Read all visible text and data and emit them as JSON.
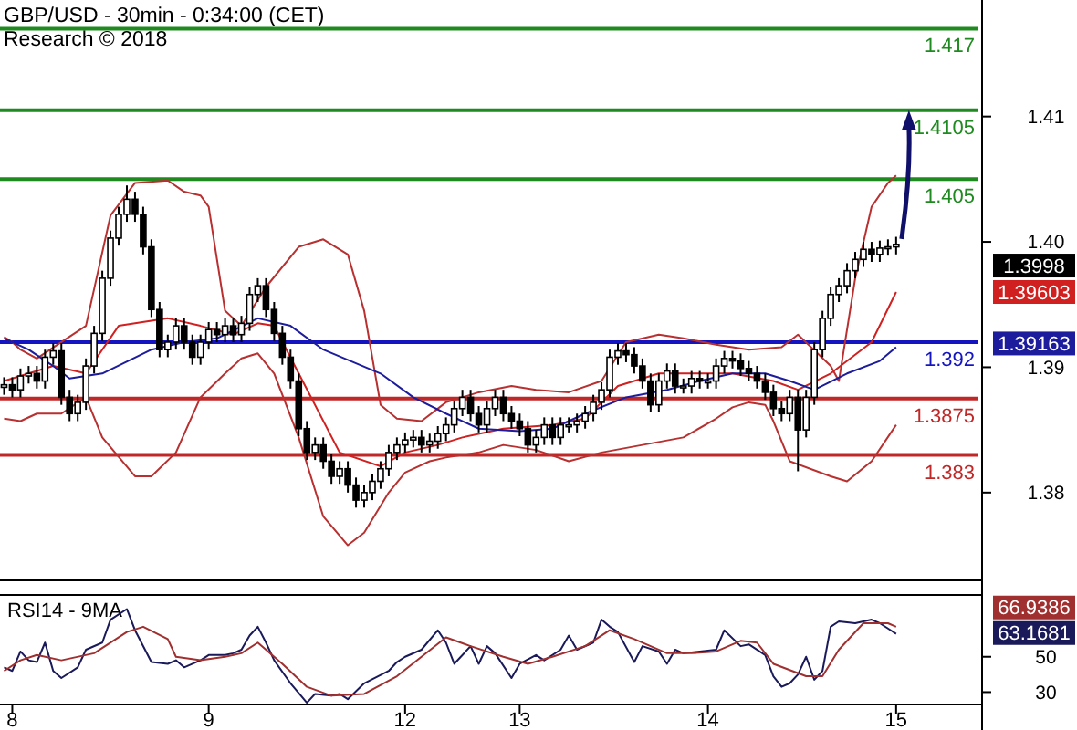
{
  "chart_data": [
    {
      "type": "candlestick",
      "title": "GBP/USD - 30min - 0:34:00 (CET)",
      "subtitle": "Research © 2018",
      "color": "#000000",
      "categories": [
        null,
        "8",
        null,
        null,
        null,
        null,
        null,
        null,
        null,
        null,
        null,
        null,
        null,
        null,
        null,
        null,
        null,
        null,
        null,
        null,
        null,
        null,
        null,
        null,
        null,
        "9",
        null,
        null,
        null,
        null,
        null,
        null,
        null,
        null,
        null,
        null,
        null,
        null,
        null,
        null,
        null,
        null,
        null,
        null,
        null,
        null,
        null,
        null,
        null,
        "12",
        null,
        null,
        null,
        null,
        null,
        null,
        null,
        null,
        null,
        null,
        null,
        null,
        null,
        "13",
        null,
        null,
        null,
        null,
        null,
        null,
        null,
        null,
        null,
        null,
        null,
        null,
        null,
        null,
        null,
        null,
        null,
        null,
        null,
        null,
        null,
        null,
        "14",
        null,
        null,
        null,
        null,
        null,
        null,
        null,
        null,
        null,
        null,
        null,
        null,
        null,
        null,
        null,
        null,
        null,
        null,
        null,
        null,
        null,
        null,
        "15",
        null,
        null,
        null,
        null,
        null,
        null,
        null,
        null,
        null,
        null
      ],
      "ohlc": [
        [
          1.3884,
          1.3892,
          1.3878,
          1.3886
        ],
        [
          1.3886,
          1.3892,
          1.3876,
          1.3882
        ],
        [
          1.3882,
          1.3899,
          1.3876,
          1.3893
        ],
        [
          1.3893,
          1.3901,
          1.3887,
          1.3895
        ],
        [
          1.3895,
          1.3901,
          1.3883,
          1.3889
        ],
        [
          1.3889,
          1.3914,
          1.3883,
          1.3908
        ],
        [
          1.3908,
          1.3919,
          1.3902,
          1.3913
        ],
        [
          1.3913,
          1.3919,
          1.387,
          1.3876
        ],
        [
          1.3876,
          1.3882,
          1.3857,
          1.3863
        ],
        [
          1.3863,
          1.3878,
          1.3857,
          1.3872
        ],
        [
          1.3872,
          1.3907,
          1.3866,
          1.3901
        ],
        [
          1.3901,
          1.3933,
          1.3895,
          1.3927
        ],
        [
          1.3927,
          1.3977,
          1.3921,
          1.3971
        ],
        [
          1.3971,
          1.4009,
          1.3965,
          1.4003
        ],
        [
          1.4003,
          1.4028,
          1.3997,
          1.4022
        ],
        [
          1.4022,
          1.4045,
          1.4016,
          1.4034
        ],
        [
          1.4034,
          1.404,
          1.4016,
          1.4022
        ],
        [
          1.4022,
          1.4028,
          1.399,
          1.3996
        ],
        [
          1.3996,
          1.4002,
          1.394,
          1.3946
        ],
        [
          1.3946,
          1.3952,
          1.3908,
          1.3914
        ],
        [
          1.3914,
          1.3926,
          1.3908,
          1.392
        ],
        [
          1.392,
          1.3939,
          1.3914,
          1.3933
        ],
        [
          1.3933,
          1.3939,
          1.3914,
          1.392
        ],
        [
          1.392,
          1.3926,
          1.3902,
          1.3908
        ],
        [
          1.3908,
          1.3926,
          1.3902,
          1.392
        ],
        [
          1.392,
          1.3936,
          1.3914,
          1.393
        ],
        [
          1.393,
          1.3936,
          1.392,
          1.3926
        ],
        [
          1.3926,
          1.3939,
          1.392,
          1.3933
        ],
        [
          1.3933,
          1.3939,
          1.392,
          1.3926
        ],
        [
          1.3926,
          1.3941,
          1.392,
          1.3935
        ],
        [
          1.3935,
          1.3964,
          1.3929,
          1.3958
        ],
        [
          1.3958,
          1.3971,
          1.3952,
          1.3965
        ],
        [
          1.3965,
          1.3971,
          1.394,
          1.3946
        ],
        [
          1.3946,
          1.3952,
          1.3921,
          1.3927
        ],
        [
          1.3927,
          1.3933,
          1.3902,
          1.3908
        ],
        [
          1.3908,
          1.3914,
          1.3883,
          1.3889
        ],
        [
          1.3889,
          1.3895,
          1.3845,
          1.3851
        ],
        [
          1.3851,
          1.3857,
          1.3826,
          1.3832
        ],
        [
          1.3832,
          1.3844,
          1.3826,
          1.3838
        ],
        [
          1.3838,
          1.3844,
          1.3819,
          1.3825
        ],
        [
          1.3825,
          1.3831,
          1.3807,
          1.3813
        ],
        [
          1.3813,
          1.3825,
          1.3807,
          1.3819
        ],
        [
          1.3819,
          1.3825,
          1.38,
          1.3806
        ],
        [
          1.3806,
          1.3812,
          1.3788,
          1.3794
        ],
        [
          1.3794,
          1.3806,
          1.3788,
          1.38
        ],
        [
          1.38,
          1.3815,
          1.3794,
          1.3809
        ],
        [
          1.3809,
          1.3825,
          1.3803,
          1.3819
        ],
        [
          1.3819,
          1.3838,
          1.3813,
          1.3832
        ],
        [
          1.3832,
          1.3844,
          1.3826,
          1.3838
        ],
        [
          1.3838,
          1.3848,
          1.3832,
          1.3842
        ],
        [
          1.3842,
          1.385,
          1.3836,
          1.3844
        ],
        [
          1.3844,
          1.385,
          1.3832,
          1.3838
        ],
        [
          1.3838,
          1.3847,
          1.3832,
          1.3841
        ],
        [
          1.3841,
          1.3853,
          1.3835,
          1.3847
        ],
        [
          1.3847,
          1.386,
          1.3841,
          1.3854
        ],
        [
          1.3854,
          1.3873,
          1.3848,
          1.3867
        ],
        [
          1.3867,
          1.3882,
          1.3861,
          1.3876
        ],
        [
          1.3876,
          1.3882,
          1.3857,
          1.3863
        ],
        [
          1.3863,
          1.3869,
          1.3848,
          1.3854
        ],
        [
          1.3854,
          1.3873,
          1.3848,
          1.3867
        ],
        [
          1.3867,
          1.3882,
          1.3861,
          1.3876
        ],
        [
          1.3876,
          1.3882,
          1.3857,
          1.3863
        ],
        [
          1.3863,
          1.3869,
          1.3851,
          1.3857
        ],
        [
          1.3857,
          1.3863,
          1.3845,
          1.3851
        ],
        [
          1.3851,
          1.3857,
          1.3832,
          1.3838
        ],
        [
          1.3838,
          1.385,
          1.3832,
          1.3844
        ],
        [
          1.3844,
          1.386,
          1.3838,
          1.3854
        ],
        [
          1.3854,
          1.386,
          1.3838,
          1.3844
        ],
        [
          1.3844,
          1.386,
          1.3838,
          1.3854
        ],
        [
          1.3854,
          1.386,
          1.3848,
          1.3854
        ],
        [
          1.3854,
          1.3863,
          1.3848,
          1.3857
        ],
        [
          1.3857,
          1.3869,
          1.3851,
          1.3863
        ],
        [
          1.3863,
          1.3878,
          1.3857,
          1.3872
        ],
        [
          1.3872,
          1.3888,
          1.3866,
          1.3882
        ],
        [
          1.3882,
          1.3914,
          1.3876,
          1.3908
        ],
        [
          1.3908,
          1.3919,
          1.3902,
          1.3913
        ],
        [
          1.3913,
          1.3919,
          1.3904,
          1.391
        ],
        [
          1.391,
          1.3916,
          1.3895,
          1.3901
        ],
        [
          1.3901,
          1.3907,
          1.3883,
          1.3889
        ],
        [
          1.3889,
          1.3895,
          1.3864,
          1.387
        ],
        [
          1.387,
          1.3895,
          1.3864,
          1.3889
        ],
        [
          1.3889,
          1.3903,
          1.3883,
          1.3897
        ],
        [
          1.3897,
          1.3903,
          1.3879,
          1.3885
        ],
        [
          1.3885,
          1.3891,
          1.3879,
          1.3885
        ],
        [
          1.3885,
          1.3897,
          1.3879,
          1.3891
        ],
        [
          1.3891,
          1.3897,
          1.3883,
          1.3889
        ],
        [
          1.3889,
          1.3895,
          1.3883,
          1.3889
        ],
        [
          1.3889,
          1.3907,
          1.3883,
          1.3901
        ],
        [
          1.3901,
          1.3913,
          1.3895,
          1.3907
        ],
        [
          1.3907,
          1.3913,
          1.3899,
          1.3905
        ],
        [
          1.3905,
          1.3911,
          1.3893,
          1.3899
        ],
        [
          1.3899,
          1.3905,
          1.3889,
          1.3895
        ],
        [
          1.3895,
          1.3901,
          1.3883,
          1.3889
        ],
        [
          1.3889,
          1.3895,
          1.3874,
          1.388
        ],
        [
          1.388,
          1.3886,
          1.3861,
          1.3867
        ],
        [
          1.3867,
          1.3873,
          1.3857,
          1.3863
        ],
        [
          1.3863,
          1.3882,
          1.3857,
          1.3876
        ],
        [
          1.3876,
          1.3882,
          1.3817,
          1.385
        ],
        [
          1.385,
          1.3882,
          1.3844,
          1.3876
        ],
        [
          1.3876,
          1.392,
          1.387,
          1.3914
        ],
        [
          1.3914,
          1.3945,
          1.3908,
          1.3939
        ],
        [
          1.3939,
          1.3964,
          1.3933,
          1.3958
        ],
        [
          1.3958,
          1.3971,
          1.3952,
          1.3965
        ],
        [
          1.3965,
          1.3983,
          1.3959,
          1.3977
        ],
        [
          1.3977,
          1.3992,
          1.3971,
          1.3986
        ],
        [
          1.3986,
          1.4,
          1.398,
          1.3994
        ],
        [
          1.3994,
          1.4,
          1.3984,
          1.399
        ],
        [
          1.399,
          1.4001,
          1.3984,
          1.3995
        ],
        [
          1.3995,
          1.4002,
          1.3989,
          1.3996
        ],
        [
          1.3996,
          1.4004,
          1.399,
          1.3998
        ],
        null,
        null,
        null,
        null,
        null,
        null,
        null,
        null,
        null,
        null
      ],
      "series": [
        {
          "type": "line",
          "color": "#b83030",
          "values": [
            1.3924,
            1.392,
            1.3914,
            null,
            1.3907,
            null,
            null,
            1.392,
            null,
            null,
            1.3933,
            null,
            null,
            1.4021,
            null,
            null,
            1.4047,
            null,
            null,
            null,
            1.4049,
            null,
            1.404,
            null,
            1.4037,
            1.4028,
            null,
            1.3945,
            null,
            1.3933,
            null,
            null,
            1.3964,
            null,
            null,
            null,
            1.3996,
            null,
            null,
            1.4002,
            null,
            null,
            1.399,
            null,
            1.3945,
            null,
            1.387,
            null,
            1.3859,
            null,
            null,
            1.3857,
            null,
            null,
            1.3872,
            null,
            null,
            null,
            1.388,
            null,
            null,
            null,
            1.3885,
            null,
            null,
            1.3882,
            null,
            null,
            null,
            1.388,
            null,
            null,
            null,
            1.3889,
            null,
            null,
            1.392,
            null,
            null,
            null,
            1.3926,
            null,
            null,
            1.3923,
            null,
            null,
            null,
            1.3918,
            null,
            null,
            null,
            1.3914,
            null,
            null,
            null,
            1.3916,
            null,
            1.3926,
            null,
            null,
            null,
            1.3901,
            1.3889,
            null,
            1.3971,
            null,
            1.4028,
            null,
            1.4047,
            1.4053,
            null,
            null,
            null,
            null,
            null,
            null,
            null,
            null,
            null,
            null
          ]
        },
        {
          "type": "line",
          "color": "#b83030",
          "values": [
            1.3859,
            null,
            1.3857,
            null,
            1.3863,
            null,
            null,
            1.3863,
            null,
            null,
            1.3876,
            null,
            1.3844,
            null,
            null,
            null,
            1.3813,
            null,
            1.3813,
            null,
            null,
            1.3832,
            null,
            null,
            1.3876,
            null,
            null,
            1.3895,
            null,
            1.3907,
            null,
            1.3911,
            null,
            1.3895,
            null,
            null,
            1.3844,
            null,
            null,
            1.3781,
            null,
            null,
            1.3758,
            null,
            1.3768,
            null,
            null,
            1.38,
            null,
            1.3816,
            null,
            null,
            1.3825,
            null,
            1.3828,
            null,
            null,
            null,
            1.3832,
            null,
            null,
            1.3838,
            null,
            null,
            null,
            1.3834,
            null,
            null,
            null,
            1.3825,
            null,
            null,
            null,
            1.3832,
            null,
            null,
            null,
            null,
            1.3838,
            null,
            null,
            null,
            null,
            1.3844,
            null,
            null,
            null,
            1.3859,
            null,
            1.3868,
            null,
            1.3872,
            null,
            1.387,
            1.3857,
            null,
            1.3825,
            null,
            null,
            null,
            null,
            1.3813,
            null,
            1.3809,
            null,
            null,
            1.3825,
            null,
            null,
            1.3854,
            null,
            null,
            null,
            null,
            null,
            null,
            null,
            null,
            null,
            null
          ]
        },
        {
          "type": "line",
          "color": "#d02020",
          "values": [
            1.3889,
            null,
            null,
            1.3895,
            null,
            null,
            1.3901,
            null,
            null,
            null,
            1.3895,
            null,
            null,
            null,
            1.3933,
            null,
            null,
            null,
            null,
            null,
            1.3939,
            null,
            null,
            null,
            1.3933,
            null,
            null,
            null,
            1.3926,
            null,
            null,
            1.3935,
            null,
            1.3933,
            null,
            null,
            1.3895,
            null,
            null,
            null,
            null,
            1.3832,
            null,
            null,
            null,
            null,
            1.3821,
            null,
            null,
            1.3832,
            null,
            null,
            null,
            1.3838,
            null,
            null,
            1.3844,
            null,
            null,
            null,
            null,
            1.3851,
            null,
            null,
            null,
            null,
            null,
            1.3854,
            null,
            null,
            null,
            1.3859,
            null,
            null,
            null,
            1.3885,
            null,
            null,
            null,
            null,
            1.3895,
            null,
            null,
            null,
            null,
            1.3895,
            null,
            null,
            null,
            1.3895,
            null,
            null,
            null,
            null,
            1.3889,
            null,
            null,
            1.3882,
            null,
            null,
            null,
            1.3895,
            null,
            null,
            null,
            null,
            1.392,
            null,
            null,
            1.396,
            null,
            null,
            null,
            null,
            null,
            null,
            null,
            null,
            null,
            null
          ]
        },
        {
          "type": "line",
          "color": "#1c1c9c",
          "values": [
            1.3923,
            null,
            null,
            1.3914,
            null,
            null,
            1.3901,
            null,
            1.3891,
            null,
            null,
            null,
            1.3895,
            null,
            null,
            null,
            null,
            null,
            1.3914,
            null,
            null,
            null,
            1.392,
            null,
            null,
            null,
            1.3923,
            null,
            null,
            null,
            null,
            1.3939,
            null,
            null,
            null,
            1.3933,
            null,
            null,
            null,
            1.3914,
            null,
            null,
            null,
            null,
            null,
            null,
            1.3895,
            null,
            null,
            null,
            1.3876,
            null,
            null,
            null,
            1.3863,
            null,
            null,
            null,
            1.3851,
            null,
            null,
            null,
            null,
            1.3849,
            null,
            null,
            null,
            1.3851,
            null,
            null,
            null,
            1.3863,
            null,
            null,
            null,
            null,
            1.3876,
            null,
            null,
            null,
            null,
            1.3882,
            null,
            null,
            null,
            1.3889,
            null,
            null,
            null,
            1.3895,
            null,
            null,
            null,
            1.3895,
            null,
            null,
            1.3889,
            null,
            null,
            1.3882,
            null,
            null,
            null,
            1.3895,
            null,
            null,
            null,
            1.3905,
            null,
            1.3916,
            null,
            null,
            null,
            null,
            null,
            null,
            null,
            null,
            null,
            null
          ]
        }
      ],
      "ylim": [
        1.373,
        1.419
      ],
      "yticks": [
        1.38,
        1.39,
        {
          "value": 1.4,
          "label": "1.40"
        },
        1.41
      ],
      "tick_labels": "y",
      "ref_lines": [
        {
          "axis": "y",
          "value": 1.417,
          "label": "1.417",
          "color": "#1f8a1f"
        },
        {
          "axis": "y",
          "value": 1.4105,
          "label": "1.4105",
          "color": "#1f8a1f"
        },
        {
          "axis": "y",
          "value": 1.405,
          "label": "1.405",
          "color": "#1f8a1f"
        },
        {
          "axis": "y",
          "value": 1.392,
          "label": "1.392",
          "color": "#1414c0"
        },
        {
          "axis": "y",
          "value": 1.3875,
          "label": "1.3875",
          "color": "#c02828"
        },
        {
          "axis": "y",
          "value": 1.383,
          "label": "1.383",
          "color": "#c02828"
        }
      ],
      "annotations": [
        "1.3998",
        "1.39603",
        "1.39163"
      ]
    },
    {
      "type": "line",
      "title": "RSI14 - 9MA",
      "categories": [
        null,
        "8",
        null,
        null,
        null,
        null,
        null,
        null,
        null,
        null,
        null,
        null,
        null,
        null,
        null,
        null,
        null,
        null,
        null,
        null,
        null,
        null,
        null,
        null,
        null,
        "9",
        null,
        null,
        null,
        null,
        null,
        null,
        null,
        null,
        null,
        null,
        null,
        null,
        null,
        null,
        null,
        null,
        null,
        null,
        null,
        null,
        null,
        null,
        null,
        "12",
        null,
        null,
        null,
        null,
        null,
        null,
        null,
        null,
        null,
        null,
        null,
        null,
        null,
        "13",
        null,
        null,
        null,
        null,
        null,
        null,
        null,
        null,
        null,
        null,
        null,
        null,
        null,
        null,
        null,
        null,
        null,
        null,
        null,
        null,
        null,
        null,
        "14",
        null,
        null,
        null,
        null,
        null,
        null,
        null,
        null,
        null,
        null,
        null,
        null,
        null,
        null,
        null,
        null,
        null,
        null,
        null,
        null,
        null,
        null,
        "15",
        null,
        null,
        null,
        null,
        null,
        null,
        null,
        null,
        null,
        null
      ],
      "series": [
        {
          "color": "#1a1a5a",
          "values": [
            44,
            42,
            53,
            48,
            47,
            58,
            42,
            38,
            null,
            44,
            54,
            null,
            58,
            71,
            null,
            77,
            65,
            null,
            47,
            null,
            46,
            48,
            44,
            null,
            48,
            51,
            null,
            51,
            52,
            54,
            62,
            67,
            58,
            48,
            null,
            35,
            null,
            24,
            29,
            null,
            28,
            29,
            26,
            null,
            35,
            null,
            null,
            42,
            47,
            50,
            null,
            54,
            null,
            65,
            58,
            46,
            null,
            56,
            46,
            56,
            52,
            null,
            38,
            46,
            null,
            51,
            48,
            null,
            54,
            62,
            54,
            null,
            58,
            71,
            67,
            64,
            null,
            47,
            56,
            null,
            53,
            46,
            54,
            52,
            null,
            53,
            null,
            54,
            65,
            null,
            56,
            57,
            null,
            51,
            39,
            33,
            35,
            40,
            50,
            37,
            42,
            67,
            70,
            null,
            69,
            null,
            71,
            69,
            66,
            63,
            null,
            null,
            null,
            null,
            null,
            null,
            null,
            null,
            null,
            null
          ]
        },
        {
          "color": "#a03030",
          "values": [
            42,
            null,
            48,
            null,
            51,
            null,
            null,
            48,
            null,
            null,
            null,
            52,
            null,
            null,
            null,
            64,
            null,
            67,
            null,
            null,
            60,
            50,
            null,
            null,
            48,
            null,
            null,
            50,
            null,
            52,
            null,
            58,
            null,
            null,
            46,
            null,
            null,
            33,
            null,
            null,
            28,
            null,
            null,
            null,
            29,
            null,
            null,
            null,
            39,
            null,
            null,
            50,
            null,
            null,
            61,
            null,
            null,
            56,
            null,
            null,
            null,
            50,
            null,
            null,
            46,
            null,
            null,
            50,
            null,
            null,
            null,
            56,
            null,
            null,
            65,
            null,
            null,
            60,
            null,
            null,
            null,
            52,
            null,
            null,
            52,
            null,
            null,
            53,
            null,
            null,
            59,
            null,
            58,
            null,
            46,
            null,
            null,
            null,
            39,
            null,
            39,
            null,
            54,
            null,
            null,
            69,
            null,
            null,
            69,
            67,
            null,
            null,
            null,
            null,
            null,
            null,
            null,
            null,
            null,
            null
          ]
        }
      ],
      "ylim": [
        23,
        85
      ],
      "yticks": [
        30,
        50
      ],
      "annotations": [
        "66.9386",
        "63.1681"
      ]
    }
  ]
}
